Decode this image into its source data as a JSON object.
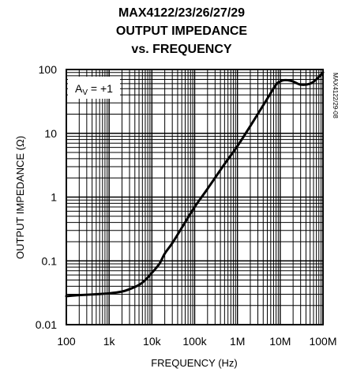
{
  "chart_data": {
    "type": "line",
    "title": [
      "MAX4122/23/26/27/29",
      "OUTPUT IMPEDANCE",
      "vs. FREQUENCY"
    ],
    "xlabel": "FREQUENCY (Hz)",
    "ylabel": "OUTPUT IMPEDANCE (Ω)",
    "x_scale": "log",
    "y_scale": "log",
    "xlim": [
      100,
      100000000
    ],
    "ylim": [
      0.01,
      100
    ],
    "x_tick_values": [
      100,
      1000,
      10000,
      100000,
      1000000,
      10000000,
      100000000
    ],
    "x_tick_labels": [
      "100",
      "1k",
      "10k",
      "100k",
      "1M",
      "10M",
      "100M"
    ],
    "y_tick_values": [
      0.01,
      0.1,
      1,
      10,
      100
    ],
    "y_tick_labels": [
      "0.01",
      "0.1",
      "1",
      "10",
      "100"
    ],
    "grid": true,
    "annotation": {
      "main": "A",
      "sub": "V",
      "rest": " = +1"
    },
    "side_label": "MAX4122/29-08",
    "series": [
      {
        "x": [
          100,
          200,
          500,
          1000,
          2000,
          3000,
          5000,
          7000,
          10000,
          15000,
          20000,
          30000,
          50000,
          100000,
          200000,
          500000,
          1000000,
          2000000,
          5000000,
          8000000,
          10000000,
          12000000,
          15000000,
          20000000,
          30000000,
          50000000,
          70000000,
          100000000
        ],
        "y": [
          0.028,
          0.029,
          0.03,
          0.031,
          0.033,
          0.036,
          0.042,
          0.05,
          0.065,
          0.09,
          0.13,
          0.19,
          0.33,
          0.7,
          1.35,
          3.3,
          6.3,
          13,
          35,
          58,
          65,
          68,
          68,
          65,
          58,
          60,
          70,
          90
        ]
      }
    ]
  }
}
